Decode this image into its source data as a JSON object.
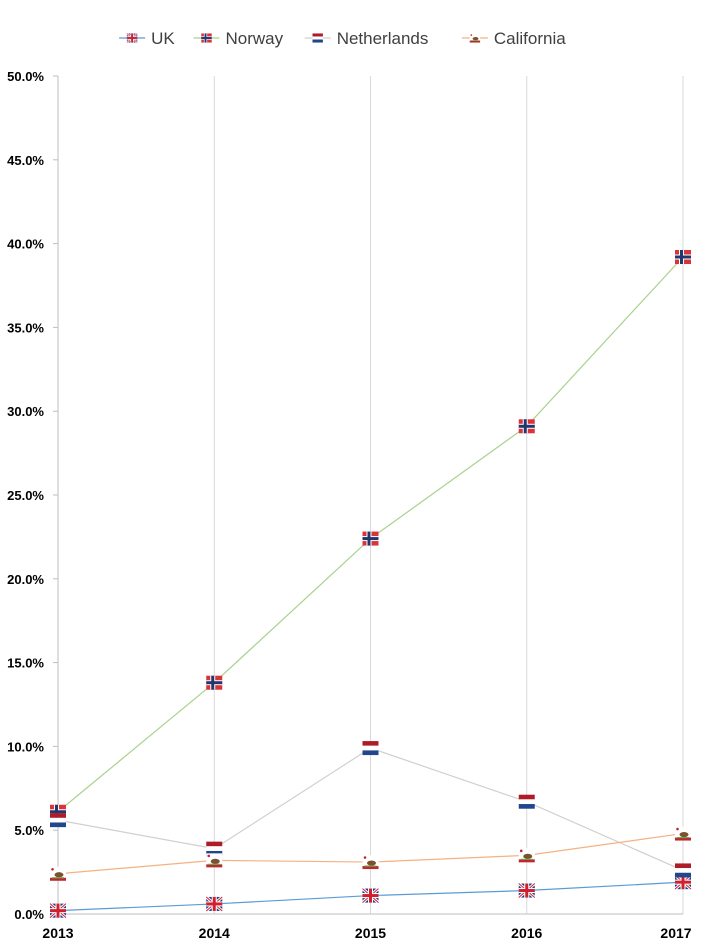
{
  "chart_data": {
    "type": "line",
    "title": "",
    "xlabel": "",
    "ylabel": "",
    "x": [
      "2013",
      "2014",
      "2015",
      "2016",
      "2017"
    ],
    "ylim": [
      0,
      0.5
    ],
    "ytick_values": [
      0,
      0.05,
      0.1,
      0.15,
      0.2,
      0.25,
      0.3,
      0.35,
      0.4,
      0.45,
      0.5
    ],
    "ytick_labels": [
      "0.0%",
      "5.0%",
      "10.0%",
      "15.0%",
      "20.0%",
      "25.0%",
      "30.0%",
      "35.0%",
      "40.0%",
      "45.0%",
      "50.0%"
    ],
    "grid": "vertical",
    "legend_position": "top-center",
    "series": [
      {
        "name": "UK",
        "values": [
          0.002,
          0.006,
          0.011,
          0.014,
          0.019
        ],
        "color": "#5b9bd5",
        "marker": "uk-flag-icon"
      },
      {
        "name": "Norway",
        "values": [
          0.061,
          0.138,
          0.224,
          0.291,
          0.392
        ],
        "color": "#a9d18e",
        "marker": "norway-flag-icon"
      },
      {
        "name": "Netherlands",
        "values": [
          0.056,
          0.039,
          0.099,
          0.067,
          0.026
        ],
        "color": "#d0d0d0",
        "marker": "netherlands-flag-icon"
      },
      {
        "name": "California",
        "values": [
          0.024,
          0.032,
          0.031,
          0.035,
          0.048
        ],
        "color": "#f4b183",
        "marker": "california-flag-icon"
      }
    ]
  }
}
